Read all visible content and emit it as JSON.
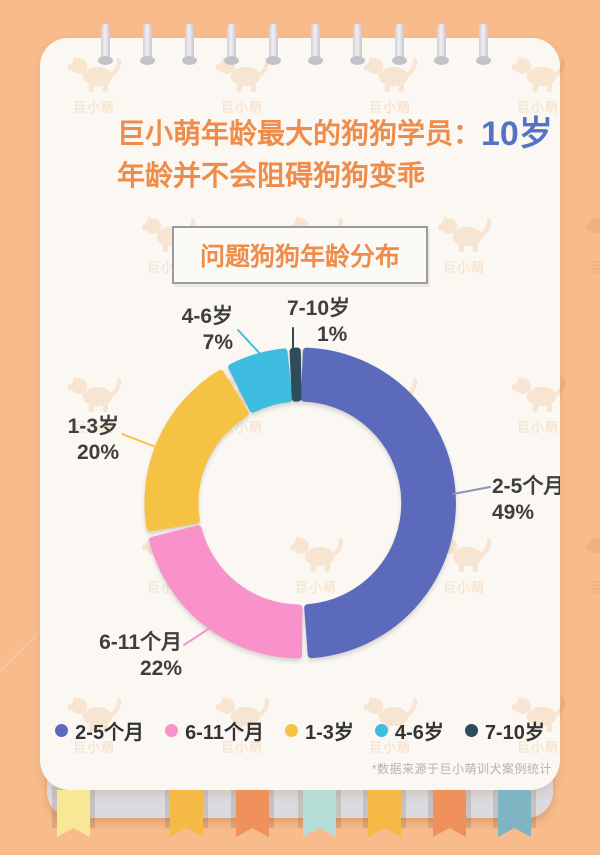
{
  "page": {
    "bg_color": "#F8BC8C",
    "card_color": "#FBF8F3",
    "watermark_text": "巨小萌",
    "ribbon_colors": [
      "#F8E795",
      "#F5B945",
      "#F0905A",
      "#B5DCD5",
      "#F5B945",
      "#F0905A",
      "#7FB5C3"
    ]
  },
  "header": {
    "title_prefix": "巨小萌年龄最大的狗狗学员：",
    "title_highlight": "10岁",
    "subtitle": "年龄并不会阻碍狗狗变乖",
    "title_color": "#EF8C4A",
    "highlight_color": "#5473C6"
  },
  "chart_data": {
    "type": "donut",
    "title": "问题狗狗年龄分布",
    "unit": "%",
    "start_angle_deg": 0,
    "clockwise": true,
    "legend_position": "bottom",
    "segments": [
      {
        "label": "2-5个月",
        "value": 49,
        "percent_text": "49%",
        "color": "#5C6ABC"
      },
      {
        "label": "6-11个月",
        "value": 22,
        "percent_text": "22%",
        "color": "#F991CB"
      },
      {
        "label": "1-3岁",
        "value": 20,
        "percent_text": "20%",
        "color": "#F5C244"
      },
      {
        "label": "4-6岁",
        "value": 7,
        "percent_text": "7%",
        "color": "#3FBDE0"
      },
      {
        "label": "7-10岁",
        "value": 1,
        "percent_text": "1%",
        "color": "#2E4D5A"
      }
    ]
  },
  "footer": {
    "note": "*数据来源于巨小萌训犬案例统计"
  }
}
